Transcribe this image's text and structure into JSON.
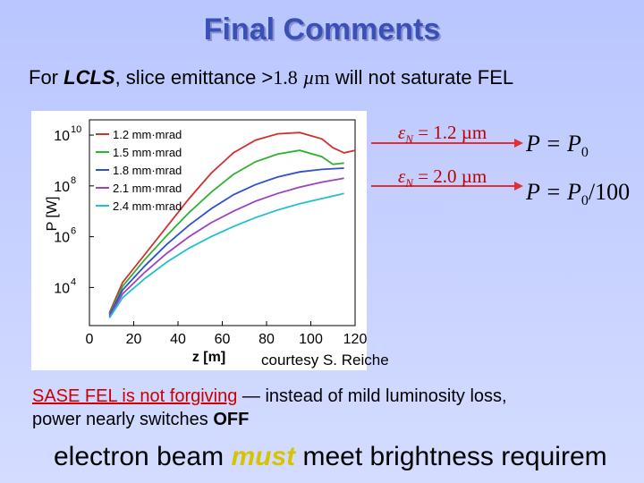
{
  "title": "Final Comments",
  "subtitle": {
    "prefix": "For ",
    "lcls": "LCLS",
    "middle": ", slice emittance >",
    "value": "1.8",
    "unit_mu": "µ",
    "unit_m": "m",
    "suffix": " will not saturate FEL"
  },
  "annotations": {
    "eq1_eps": "ε",
    "eq1_sub": "N",
    "eq1_rest": " = 1.2 µm",
    "eq2_eps": "ε",
    "eq2_sub": "N",
    "eq2_rest": " = 2.0 µm",
    "p1_left": "P",
    "p1_eq": " = P",
    "p1_sub": "0",
    "p2_left": "P",
    "p2_eq": " = P",
    "p2_sub": "0",
    "p2_tail": "/100",
    "arrow_color": "#e03030"
  },
  "credit": "courtesy S. Reiche",
  "note": {
    "red": "SASE FEL is not forgiving",
    "rest": " — instead of mild luminosity loss,",
    "line2": "power nearly switches ",
    "off": "OFF"
  },
  "bottom": {
    "pre": "electron beam ",
    "must": "must",
    "post": " meet brightness requirem"
  },
  "chart_data": {
    "type": "line",
    "xlabel": "z [m]",
    "ylabel": "P [W]",
    "xlim": [
      0,
      120
    ],
    "ylim_log10": [
      2.5,
      10.6
    ],
    "yscale": "log",
    "x_ticks": [
      0,
      20,
      40,
      60,
      80,
      100,
      120
    ],
    "x_tick_labels": [
      "0",
      "20",
      "40",
      "60",
      "80",
      "100",
      "120"
    ],
    "y_ticks_log10": [
      4,
      6,
      8,
      10
    ],
    "y_tick_base": "10",
    "y_tick_exps": [
      "4",
      "6",
      "8",
      "10"
    ],
    "legend_position": "top-left",
    "series": [
      {
        "name": "1.2 mm·mrad",
        "color": "#d03030",
        "x": [
          9,
          15,
          25,
          35,
          45,
          55,
          65,
          75,
          85,
          95,
          105,
          110,
          115,
          120
        ],
        "y": [
          3.0,
          4.2,
          5.3,
          6.4,
          7.5,
          8.5,
          9.3,
          9.8,
          10.05,
          10.1,
          9.85,
          9.5,
          9.3,
          9.4
        ]
      },
      {
        "name": "1.5 mm·mrad",
        "color": "#30b030",
        "x": [
          9,
          15,
          25,
          35,
          45,
          55,
          65,
          75,
          85,
          95,
          105,
          110,
          115
        ],
        "y": [
          2.95,
          4.05,
          5.1,
          6.05,
          6.95,
          7.75,
          8.45,
          8.95,
          9.25,
          9.4,
          9.15,
          8.85,
          8.9
        ]
      },
      {
        "name": "1.8 mm·mrad",
        "color": "#3050d0",
        "x": [
          9,
          15,
          25,
          35,
          45,
          55,
          65,
          75,
          85,
          95,
          105,
          115
        ],
        "y": [
          2.9,
          3.9,
          4.85,
          5.7,
          6.45,
          7.1,
          7.65,
          8.05,
          8.35,
          8.55,
          8.65,
          8.7
        ]
      },
      {
        "name": "2.1 mm·mrad",
        "color": "#a040c0",
        "x": [
          9,
          15,
          25,
          35,
          45,
          55,
          65,
          75,
          85,
          95,
          105,
          115
        ],
        "y": [
          2.85,
          3.75,
          4.6,
          5.35,
          6.0,
          6.55,
          7.0,
          7.4,
          7.7,
          7.95,
          8.15,
          8.3
        ]
      },
      {
        "name": "2.4 mm·mrad",
        "color": "#20c0d0",
        "x": [
          9,
          15,
          25,
          35,
          45,
          55,
          65,
          75,
          85,
          95,
          105,
          115
        ],
        "y": [
          2.8,
          3.6,
          4.35,
          5.0,
          5.55,
          6.0,
          6.4,
          6.75,
          7.05,
          7.3,
          7.5,
          7.7
        ]
      }
    ]
  }
}
